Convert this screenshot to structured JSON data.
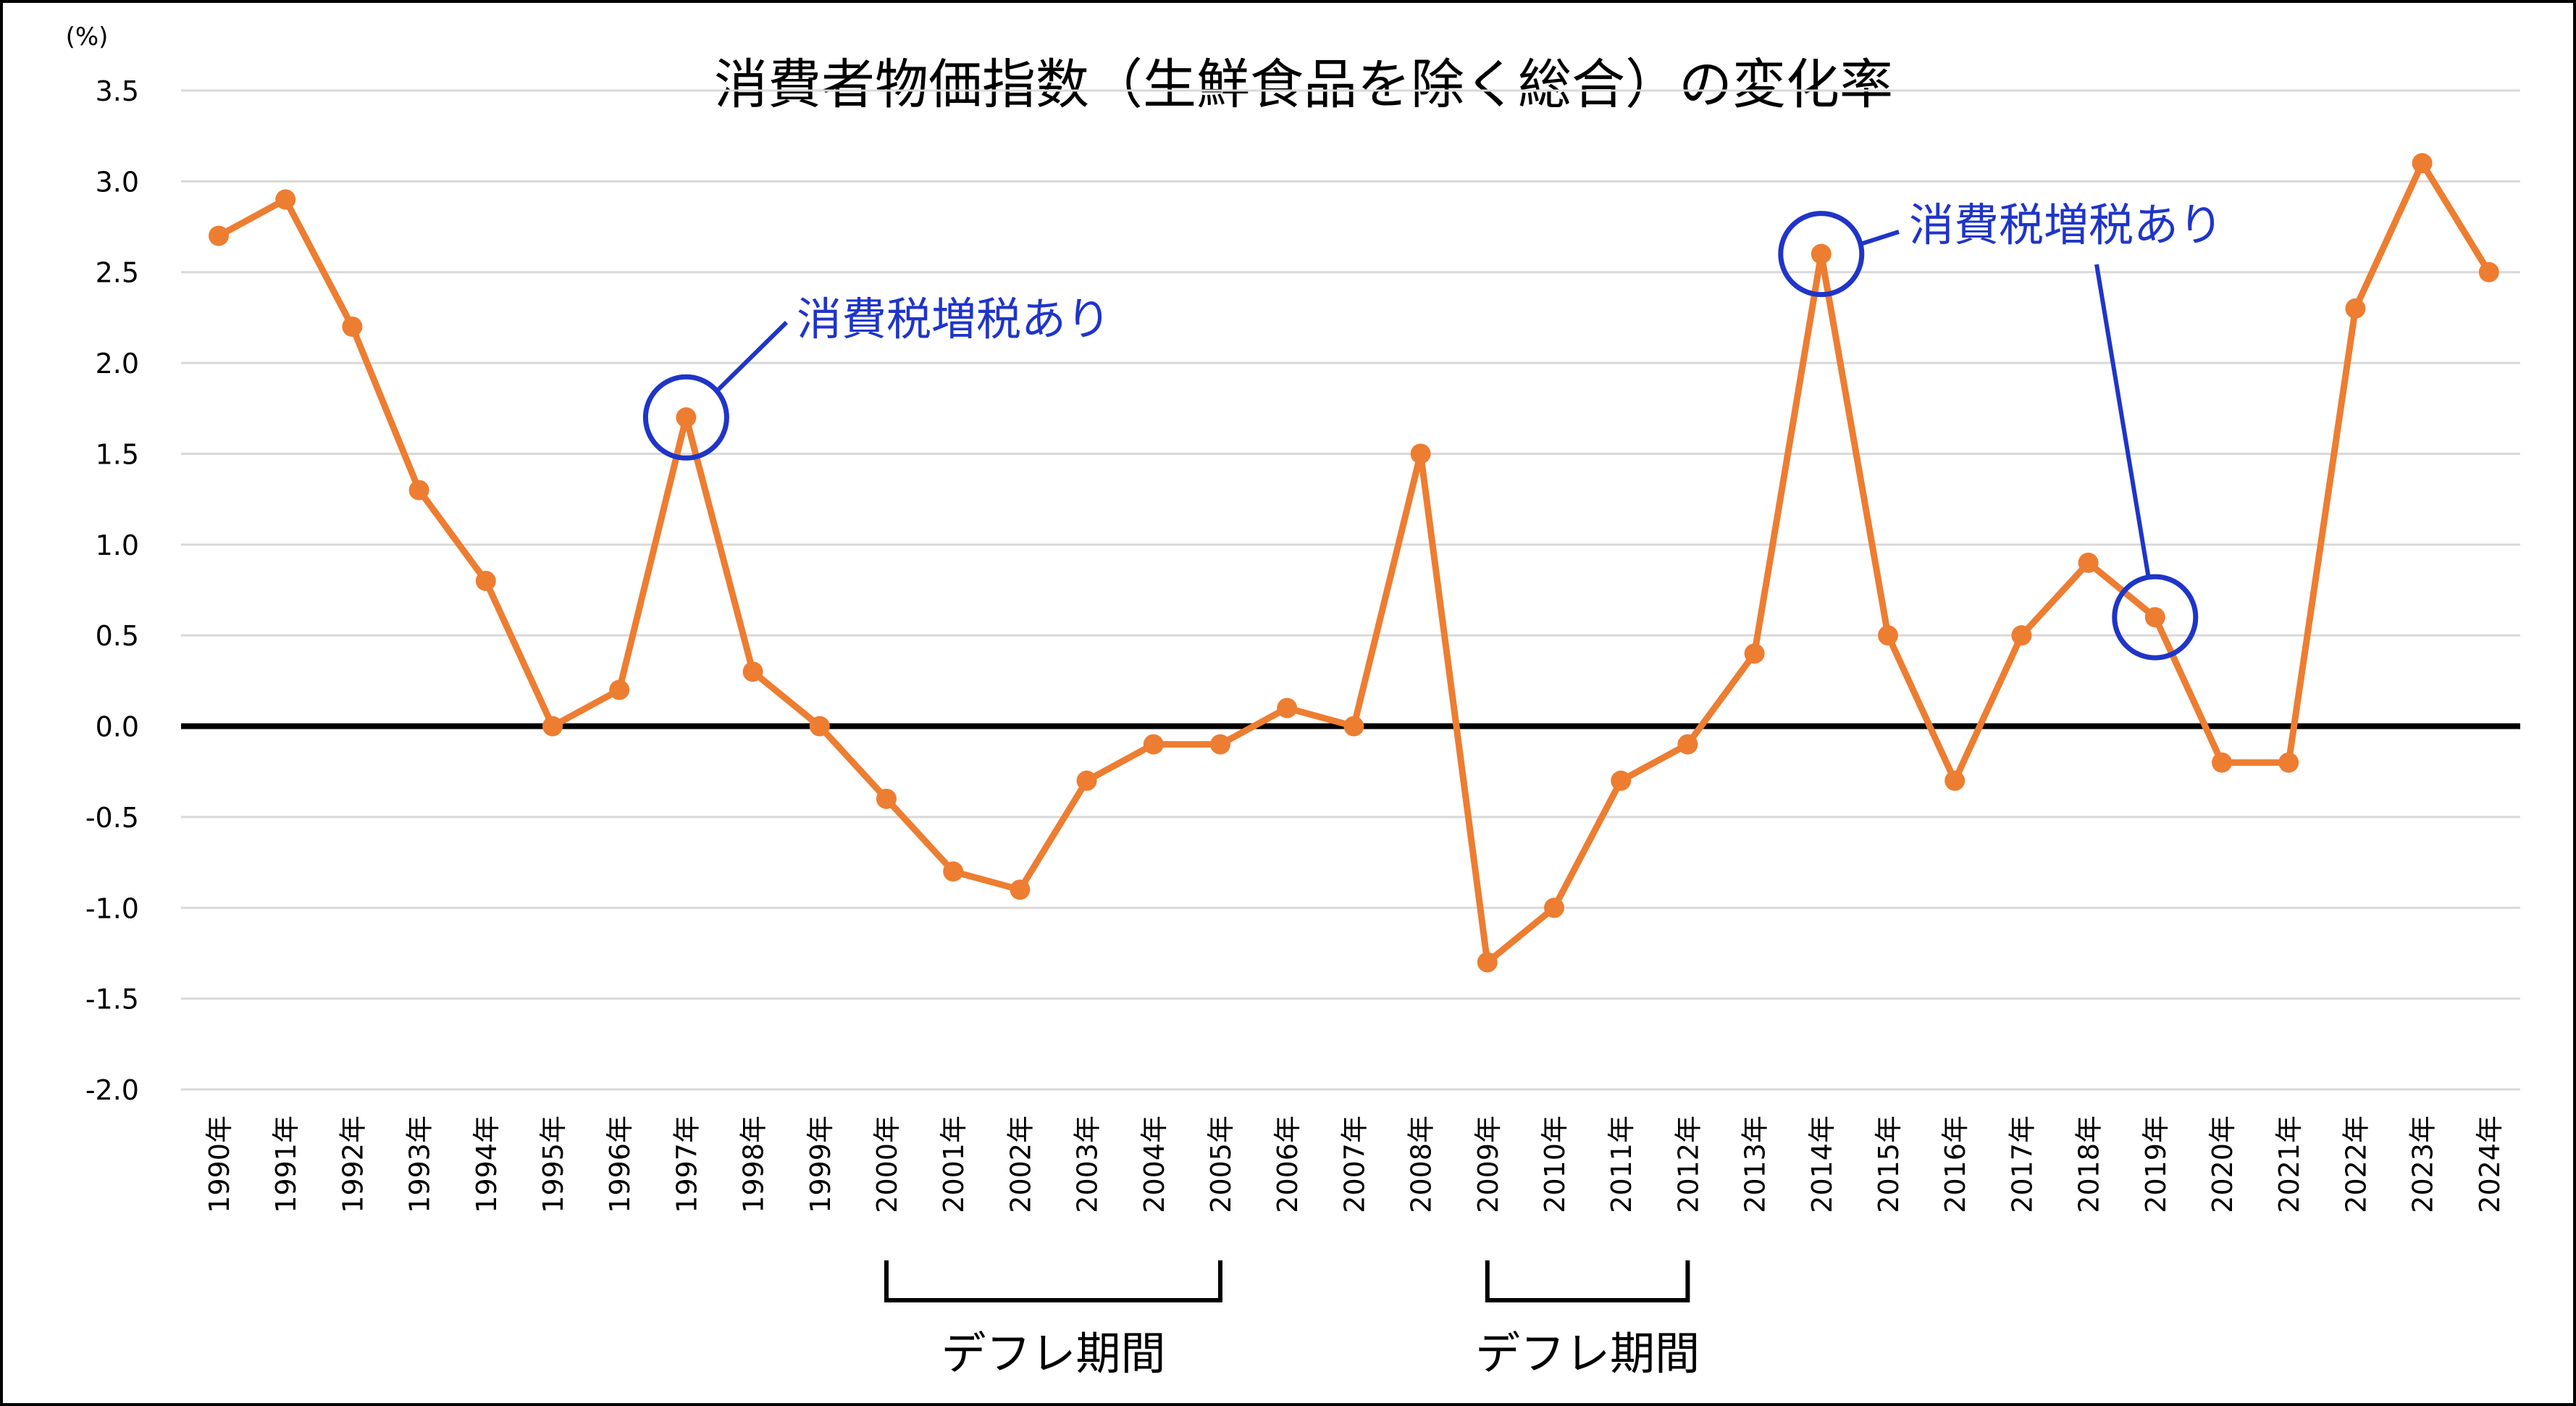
{
  "chart_data": {
    "type": "line",
    "title": "消費者物価指数（生鮮食品を除く総合）の変化率",
    "unit_label": "(%)",
    "categories": [
      "1990年",
      "1991年",
      "1992年",
      "1993年",
      "1994年",
      "1995年",
      "1996年",
      "1997年",
      "1998年",
      "1999年",
      "2000年",
      "2001年",
      "2002年",
      "2003年",
      "2004年",
      "2005年",
      "2006年",
      "2007年",
      "2008年",
      "2009年",
      "2010年",
      "2011年",
      "2012年",
      "2013年",
      "2014年",
      "2015年",
      "2016年",
      "2017年",
      "2018年",
      "2019年",
      "2020年",
      "2021年",
      "2022年",
      "2023年",
      "2024年"
    ],
    "values": [
      2.7,
      2.9,
      2.2,
      1.3,
      0.8,
      0.0,
      0.2,
      1.7,
      0.3,
      0.0,
      -0.4,
      -0.8,
      -0.9,
      -0.3,
      -0.1,
      -0.1,
      0.1,
      0.0,
      1.5,
      -1.3,
      -1.0,
      -0.3,
      -0.1,
      0.4,
      2.6,
      0.5,
      -0.3,
      0.5,
      0.9,
      0.6,
      -0.2,
      -0.2,
      2.3,
      3.1,
      2.5
    ],
    "ylim": [
      -2.0,
      3.5
    ],
    "y_ticks": [
      "3.5",
      "3.0",
      "2.5",
      "2.0",
      "1.5",
      "1.0",
      "0.5",
      "0.0",
      "-0.5",
      "-1.0",
      "-1.5",
      "-2.0"
    ],
    "grid": true,
    "zero_line": true,
    "legend": "none",
    "colors": {
      "series": "#ED7D31",
      "annotation": "#1F35C8",
      "grid": "#D9D9D9",
      "axis": "#000000",
      "text": "#000000"
    },
    "annotations": [
      {
        "text": "消費税増税あり",
        "target": "1997年"
      },
      {
        "text": "消費税増税あり",
        "target": "2014年"
      },
      {
        "text": "消費税増税あり",
        "target": "2019年"
      }
    ],
    "periods": [
      {
        "text": "デフレ期間",
        "from": "2000年",
        "to": "2005年"
      },
      {
        "text": "デフレ期間",
        "from": "2009年",
        "to": "2012年"
      }
    ]
  }
}
